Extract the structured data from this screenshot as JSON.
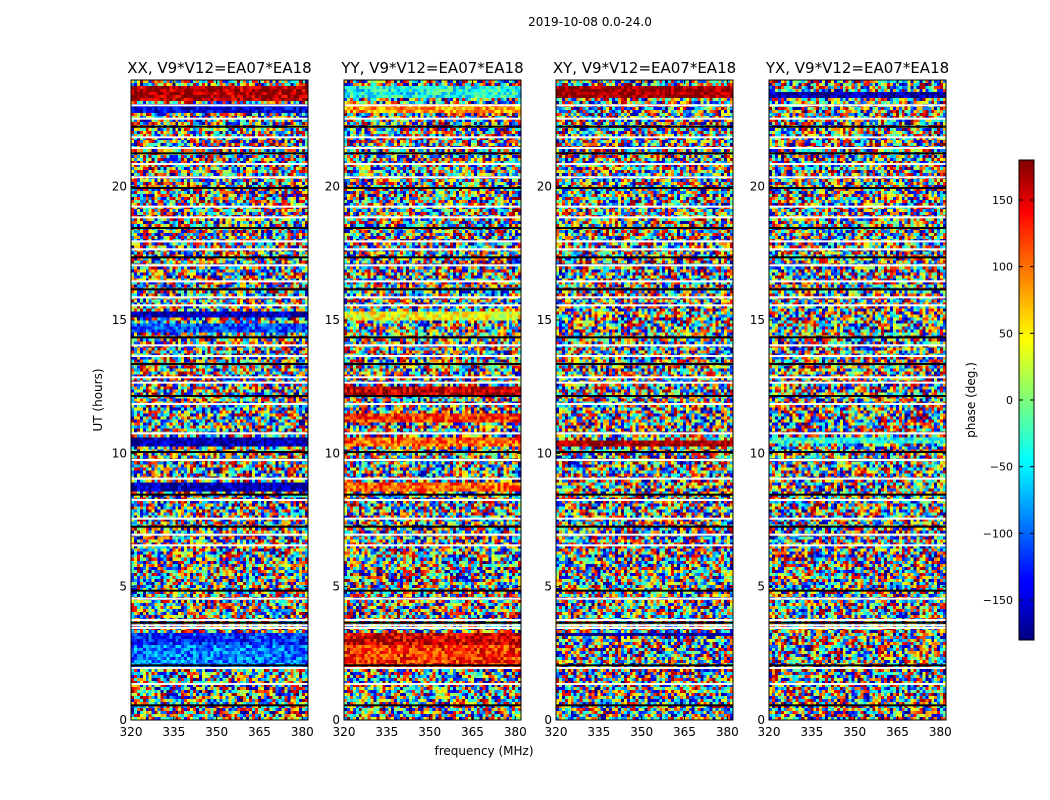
{
  "figure_title": "2019-10-08 0.0-24.0",
  "chart_data": {
    "type": "heatmap",
    "title": "2019-10-08 0.0-24.0",
    "xlabel": "frequency (MHz)",
    "ylabel": "UT (hours)",
    "xlim": [
      320,
      382
    ],
    "ylim": [
      0,
      24
    ],
    "x_ticks": [
      320,
      335,
      350,
      365,
      380
    ],
    "y_ticks": [
      0,
      5,
      10,
      15,
      20
    ],
    "colorbar": {
      "label": "phase (deg.)",
      "range": [
        -180,
        180
      ],
      "ticks": [
        -150,
        -100,
        -50,
        0,
        50,
        100,
        150
      ],
      "colormap": "jet"
    },
    "panels": [
      {
        "title": "XX, V9*V12=EA07*EA18",
        "polarization": "XX",
        "base_phase": 0,
        "bands": [
          {
            "t0": 23.2,
            "t1": 23.8,
            "phase": 165
          },
          {
            "t0": 22.8,
            "t1": 23.1,
            "phase": -150
          },
          {
            "t0": 15.1,
            "t1": 15.35,
            "phase": -165
          },
          {
            "t0": 14.6,
            "t1": 14.9,
            "phase": -110
          },
          {
            "t0": 10.3,
            "t1": 10.6,
            "phase": -165
          },
          {
            "t0": 8.6,
            "t1": 8.95,
            "phase": -165
          },
          {
            "t0": 2.9,
            "t1": 3.3,
            "phase": -120
          },
          {
            "t0": 1.9,
            "t1": 2.8,
            "phase": -90
          }
        ]
      },
      {
        "title": "YY, V9*V12=EA07*EA18",
        "polarization": "YY",
        "base_phase": 0,
        "bands": [
          {
            "t0": 23.3,
            "t1": 23.8,
            "phase": -40
          },
          {
            "t0": 22.8,
            "t1": 23.1,
            "phase": 80
          },
          {
            "t0": 15.0,
            "t1": 15.3,
            "phase": 40
          },
          {
            "t0": 12.2,
            "t1": 12.5,
            "phase": 160
          },
          {
            "t0": 11.2,
            "t1": 11.5,
            "phase": 120
          },
          {
            "t0": 10.3,
            "t1": 10.6,
            "phase": 100
          },
          {
            "t0": 8.6,
            "t1": 8.95,
            "phase": 100
          },
          {
            "t0": 2.9,
            "t1": 3.3,
            "phase": 150
          },
          {
            "t0": 1.9,
            "t1": 2.8,
            "phase": 120
          }
        ]
      },
      {
        "title": "XY, V9*V12=EA07*EA18",
        "polarization": "XY",
        "base_phase": 0,
        "bands": [
          {
            "t0": 23.3,
            "t1": 23.8,
            "phase": 175
          },
          {
            "t0": 10.3,
            "t1": 10.5,
            "phase": 175
          },
          {
            "t0": 3.15,
            "t1": 3.3,
            "phase": -175
          }
        ]
      },
      {
        "title": "YX, V9*V12=EA07*EA18",
        "polarization": "YX",
        "base_phase": 0,
        "bands": [
          {
            "t0": 23.3,
            "t1": 23.6,
            "phase": -170
          },
          {
            "t0": 10.4,
            "t1": 10.6,
            "phase": -30
          }
        ]
      }
    ],
    "flagged_rows_hours": [
      0.55,
      1.35,
      1.95,
      2.05,
      3.45,
      3.55,
      3.65,
      3.75,
      4.55,
      4.85,
      6.55,
      6.95,
      7.25,
      7.55,
      8.25,
      8.45,
      9.05,
      9.75,
      10.05,
      10.75,
      11.85,
      12.15,
      12.65,
      12.85,
      13.35,
      13.65,
      14.05,
      14.35,
      15.55,
      15.85,
      16.15,
      16.45,
      17.05,
      17.35,
      17.65,
      17.95,
      18.45,
      18.85,
      19.25,
      19.95,
      20.35,
      20.85,
      21.25,
      21.45,
      21.85,
      22.25,
      22.55,
      23.05
    ]
  }
}
